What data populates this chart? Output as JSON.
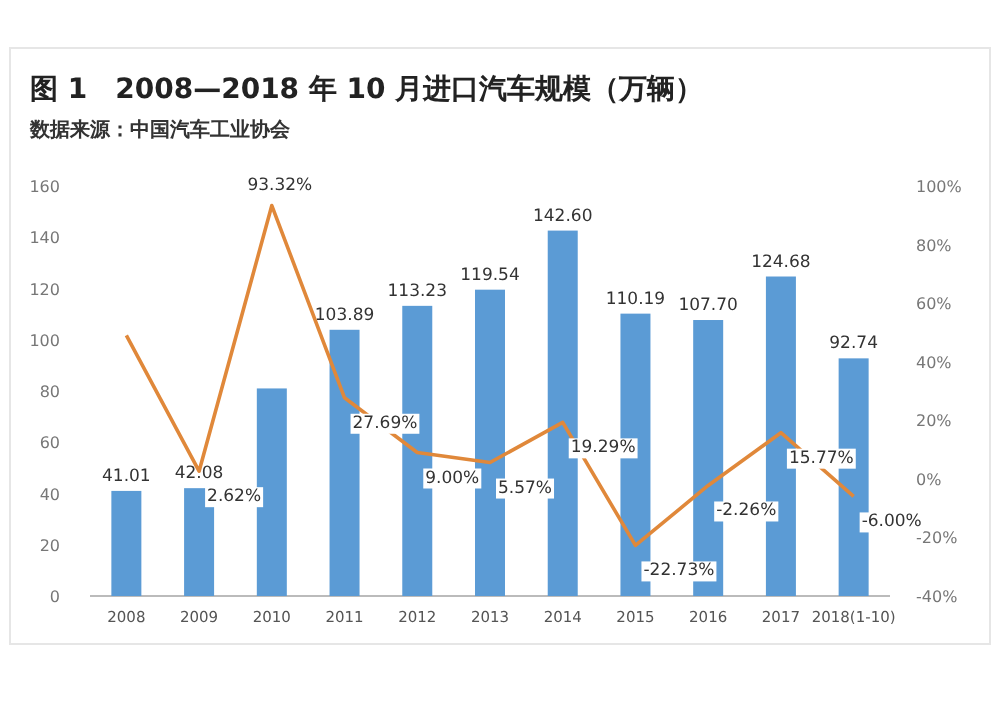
{
  "chart_data": {
    "type": "bar",
    "title": "图 1　2008—2018 年 10 月进口汽车规模（万辆）",
    "subtitle": "数据来源：中国汽车工业协会",
    "categories": [
      "2008",
      "2009",
      "2010",
      "2011",
      "2012",
      "2013",
      "2014",
      "2015",
      "2016",
      "2017",
      "2018(1-10)"
    ],
    "series": [
      {
        "color": "#5b9bd5",
        "values": [
          41.01,
          42.08,
          81,
          103.89,
          113.23,
          119.54,
          142.6,
          110.19,
          107.7,
          124.68,
          92.74
        ],
        "value_labels": [
          "41.01",
          "42.08",
          null,
          "103.89",
          "113.23",
          "119.54",
          "142.60",
          "110.19",
          "107.70",
          "124.68",
          "92.74"
        ]
      },
      {
        "type": "line",
        "axis": "y2",
        "color": "#e0883a",
        "values": [
          49,
          2.62,
          93.32,
          27.69,
          9.0,
          5.57,
          19.29,
          -22.73,
          -2.26,
          15.77,
          -6.0
        ],
        "value_labels": [
          null,
          "2.62%",
          "93.32%",
          "27.69%",
          "9.00%",
          "5.57%",
          "19.29%",
          "-22.73%",
          "-2.26%",
          "15.77%",
          "-6.00%"
        ]
      }
    ],
    "ylim": [
      0,
      160
    ],
    "yticks": [
      0,
      20,
      40,
      60,
      80,
      100,
      120,
      140,
      160
    ],
    "y2lim": [
      -40,
      100
    ],
    "y2ticks": [
      {
        "value": -40,
        "label": "-40%"
      },
      {
        "value": -20,
        "label": "-20%"
      },
      {
        "value": 0,
        "label": "0%"
      },
      {
        "value": 20,
        "label": "20%"
      },
      {
        "value": 40,
        "label": "40%"
      },
      {
        "value": 60,
        "label": "60%"
      },
      {
        "value": 80,
        "label": "80%"
      },
      {
        "value": 100,
        "label": "100%"
      }
    ],
    "grid": false,
    "marker": "none",
    "line_style": "solid"
  }
}
